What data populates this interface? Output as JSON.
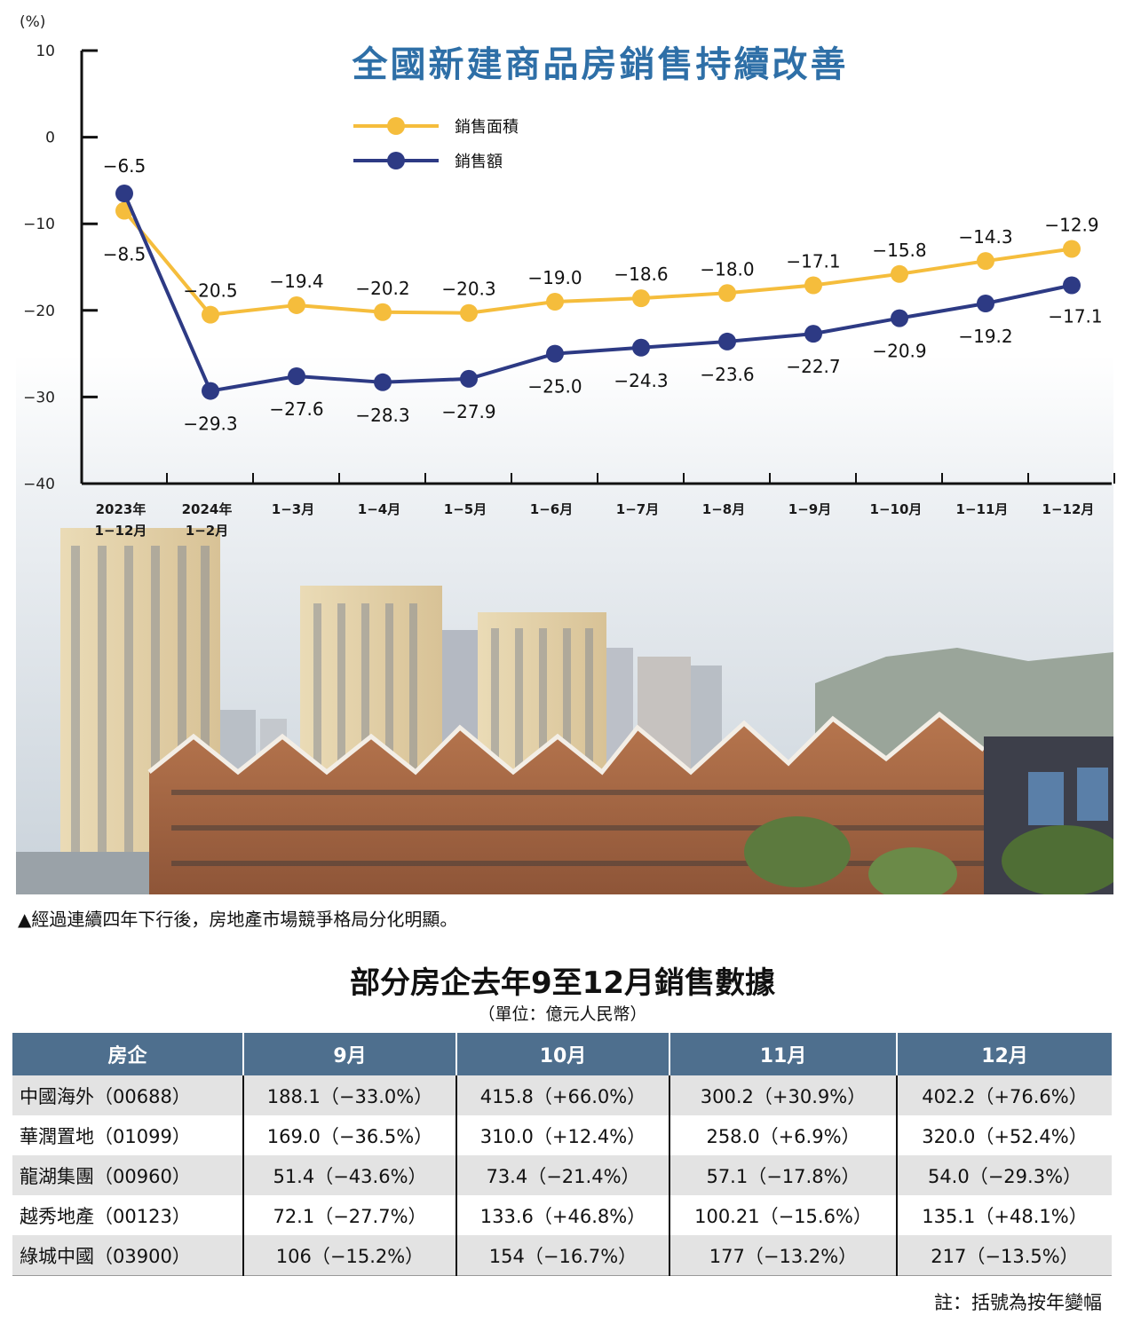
{
  "chart_data": {
    "type": "line",
    "title": "全國新建商品房銷售持續改善",
    "ylabel": "(%)",
    "ylim": [
      -40,
      10
    ],
    "yticks": [
      "10",
      "0",
      "−10",
      "−20",
      "−30",
      "−40"
    ],
    "categories": [
      [
        "2023年",
        "1−12月"
      ],
      [
        "2024年",
        "1−2月"
      ],
      [
        "1−3月"
      ],
      [
        "1−4月"
      ],
      [
        "1−5月"
      ],
      [
        "1−6月"
      ],
      [
        "1−7月"
      ],
      [
        "1−8月"
      ],
      [
        "1−9月"
      ],
      [
        "1−10月"
      ],
      [
        "1−11月"
      ],
      [
        "1−12月"
      ]
    ],
    "legend_position": "top-center",
    "series": [
      {
        "name": "銷售面積",
        "color": "#f5bd3c",
        "values": [
          -8.5,
          -20.5,
          -19.4,
          -20.2,
          -20.3,
          -19.0,
          -18.6,
          -18.0,
          -17.1,
          -15.8,
          -14.3,
          -12.9
        ],
        "labels": [
          "−8.5",
          "−20.5",
          "−19.4",
          "−20.2",
          "−20.3",
          "−19.0",
          "−18.6",
          "−18.0",
          "−17.1",
          "−15.8",
          "−14.3",
          "−12.9"
        ]
      },
      {
        "name": "銷售額",
        "color": "#2d3a84",
        "values": [
          -6.5,
          -29.3,
          -27.6,
          -28.3,
          -27.9,
          -25.0,
          -24.3,
          -23.6,
          -22.7,
          -20.9,
          -19.2,
          -17.1
        ],
        "labels": [
          "−6.5",
          "−29.3",
          "−27.6",
          "−28.3",
          "−27.9",
          "−25.0",
          "−24.3",
          "−23.6",
          "−22.7",
          "−20.9",
          "−19.2",
          "−17.1"
        ]
      }
    ]
  },
  "photo": {
    "caption": "▲經過連續四年下行後，房地產市場競爭格局分化明顯。"
  },
  "table": {
    "title": "部分房企去年9至12月銷售數據",
    "unit": "（單位：億元人民幣）",
    "headers": [
      "房企",
      "9月",
      "10月",
      "11月",
      "12月"
    ],
    "rows": [
      [
        "中國海外（00688）",
        "188.1（−33.0%）",
        "415.8（+66.0%）",
        "300.2（+30.9%）",
        "402.2（+76.6%）"
      ],
      [
        "華潤置地（01099）",
        "169.0（−36.5%）",
        "310.0（+12.4%）",
        "258.0（+6.9%）",
        "320.0（+52.4%）"
      ],
      [
        "龍湖集團（00960）",
        "51.4（−43.6%）",
        "73.4（−21.4%）",
        "57.1（−17.8%）",
        "54.0（−29.3%）"
      ],
      [
        "越秀地產（00123）",
        "72.1（−27.7%）",
        "133.6（+46.8%）",
        "100.21（−15.6%）",
        "135.1（+48.1%）"
      ],
      [
        "綠城中國（03900）",
        "106（−15.2%）",
        "154（−16.7%）",
        "177（−13.2%）",
        "217（−13.5%）"
      ]
    ],
    "note": "註：括號為按年變幅"
  }
}
